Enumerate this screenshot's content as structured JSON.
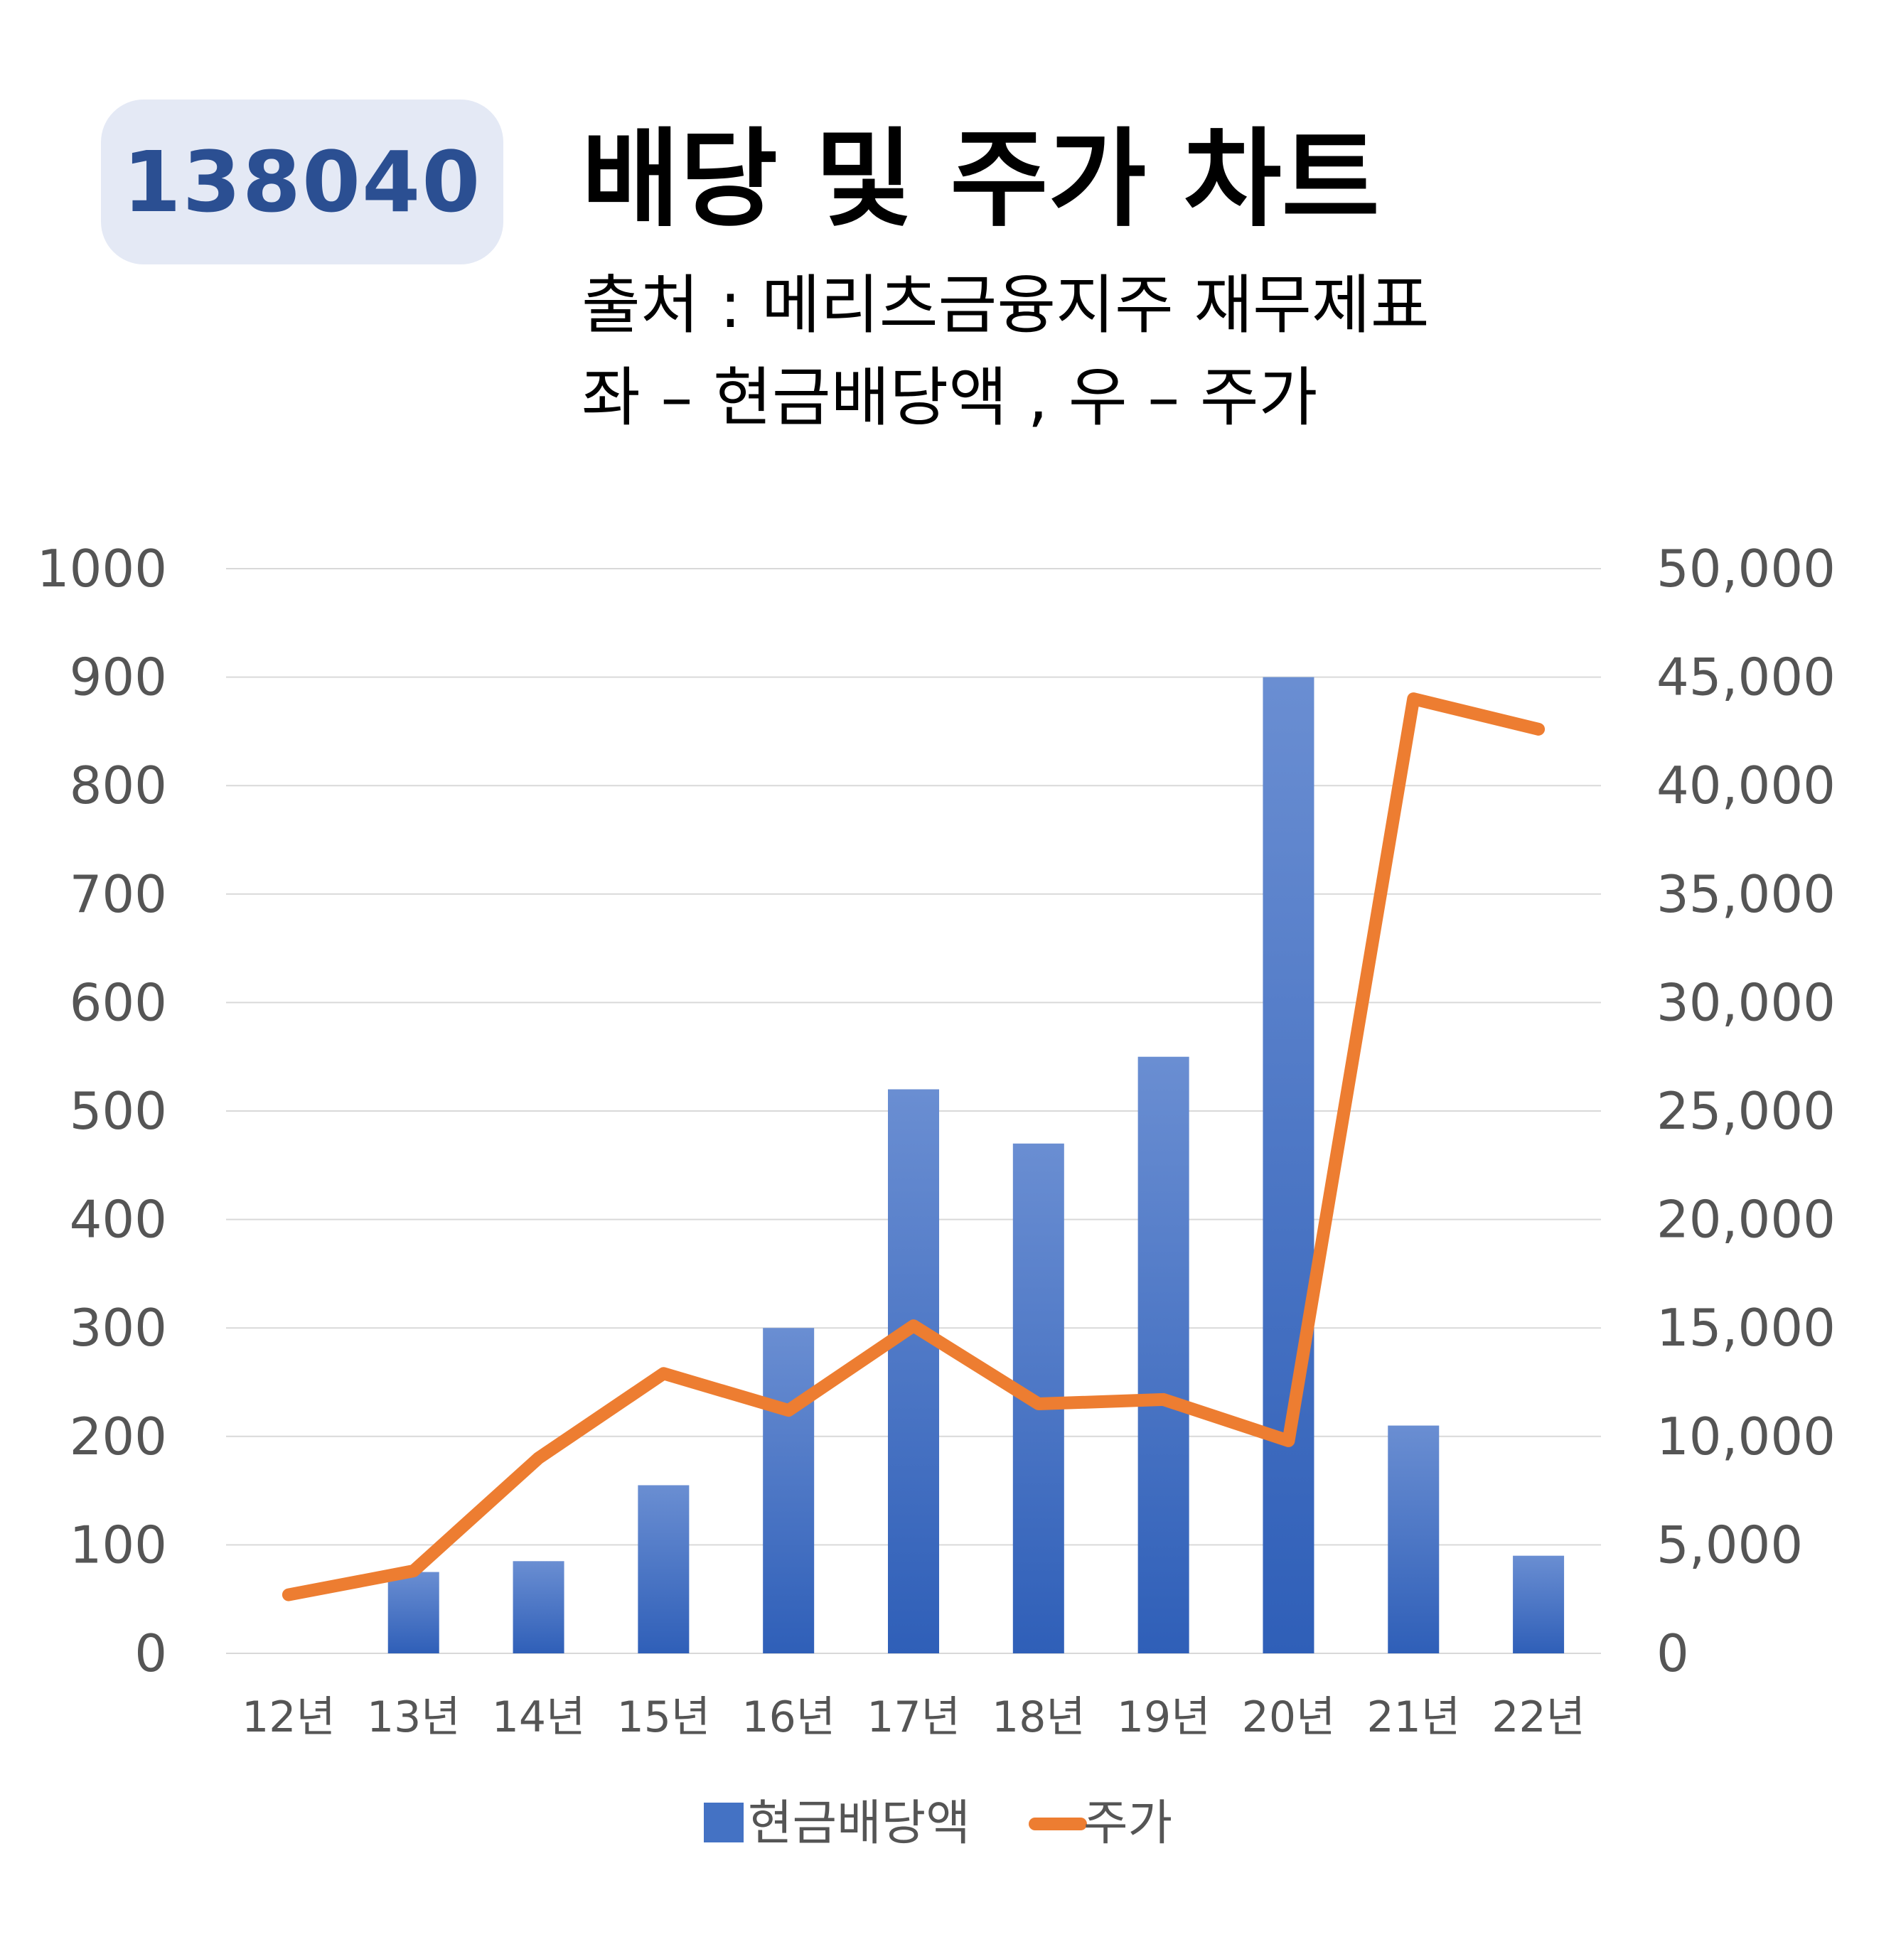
{
  "header": {
    "ticker": "138040",
    "title": "배당 및 주가 차트",
    "subtitle_source": "출처 : 메리츠금융지주 재무제표",
    "subtitle_axes": "좌 – 현금배당액  ,  우 – 주가"
  },
  "colors": {
    "bar": "#4472c4",
    "bar_top": "#6a8ed2",
    "bar_bottom": "#2f5fb8",
    "line": "#ed7d31",
    "grid": "#d9d9d9",
    "badge_bg": "#e4e9f5",
    "badge_text": "#2b4f92"
  },
  "chart_data": {
    "type": "bar+line",
    "categories": [
      "12년",
      "13년",
      "14년",
      "15년",
      "16년",
      "17년",
      "18년",
      "19년",
      "20년",
      "21년",
      "22년"
    ],
    "series": [
      {
        "name": "현금배당액",
        "type": "bar",
        "axis": "left",
        "values": [
          0,
          75,
          85,
          155,
          300,
          520,
          470,
          550,
          900,
          210,
          90
        ]
      },
      {
        "name": "주가",
        "type": "line",
        "axis": "right",
        "values": [
          2700,
          3800,
          9000,
          12900,
          11200,
          15100,
          11500,
          11700,
          9800,
          44000,
          42600
        ]
      }
    ],
    "y_left": {
      "min": 0,
      "max": 1000,
      "step": 100,
      "ticks": [
        "0",
        "100",
        "200",
        "300",
        "400",
        "500",
        "600",
        "700",
        "800",
        "900",
        "1000"
      ]
    },
    "y_right": {
      "min": 0,
      "max": 50000,
      "step": 5000,
      "ticks": [
        "0",
        "5,000",
        "10,000",
        "15,000",
        "20,000",
        "25,000",
        "30,000",
        "35,000",
        "40,000",
        "45,000",
        "50,000"
      ]
    },
    "grid": true,
    "legend": {
      "position": "bottom",
      "entries": [
        "현금배당액",
        "주가"
      ]
    }
  }
}
